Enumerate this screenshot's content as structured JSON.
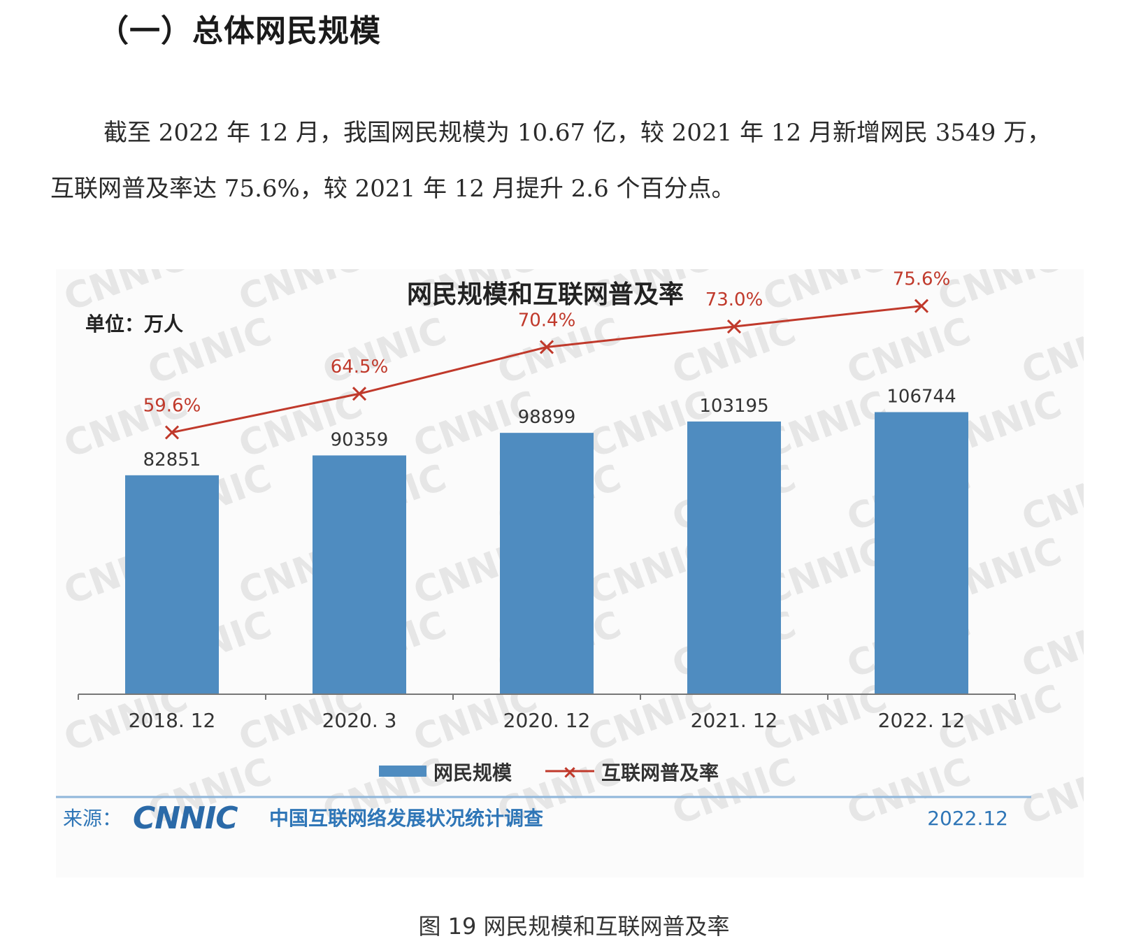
{
  "section_heading": "（一）总体网民规模",
  "paragraph": {
    "line1": "截至 2022 年 12 月，我国网民规模为 10.67 亿，较 2021 年 12 月新增网民 3549 万，",
    "line2": "互联网普及率达 75.6%，较 2021 年 12 月提升 2.6 个百分点。"
  },
  "chart_data": {
    "type": "bar",
    "title": "网民规模和互联网普及率",
    "unit_label": "单位：万人",
    "categories": [
      "2018. 12",
      "2020. 3",
      "2020. 12",
      "2021. 12",
      "2022. 12"
    ],
    "series": [
      {
        "name": "网民规模",
        "type": "bar",
        "values": [
          82851,
          90359,
          98899,
          103195,
          106744
        ],
        "labels": [
          "82851",
          "90359",
          "98899",
          "103195",
          "106744"
        ],
        "color": "#4f8cc0"
      },
      {
        "name": "互联网普及率",
        "type": "line",
        "marker": "x",
        "values": [
          59.6,
          64.5,
          70.4,
          73.0,
          75.6
        ],
        "labels": [
          "59.6%",
          "64.5%",
          "70.4%",
          "73.0%",
          "75.6%"
        ],
        "color": "#c0392b"
      }
    ],
    "grid": false,
    "legend_position": "bottom",
    "watermark": "CNNIC"
  },
  "source": {
    "prefix": "来源：",
    "logo": "CNNIC",
    "survey": "中国互联网络发展状况统计调查",
    "date": "2022.12"
  },
  "figure_caption": "图 19  网民规模和互联网普及率",
  "colors": {
    "bar": "#4f8cc0",
    "line": "#c0392b",
    "source_blue": "#2f76b7",
    "divider": "#8fb6da"
  }
}
